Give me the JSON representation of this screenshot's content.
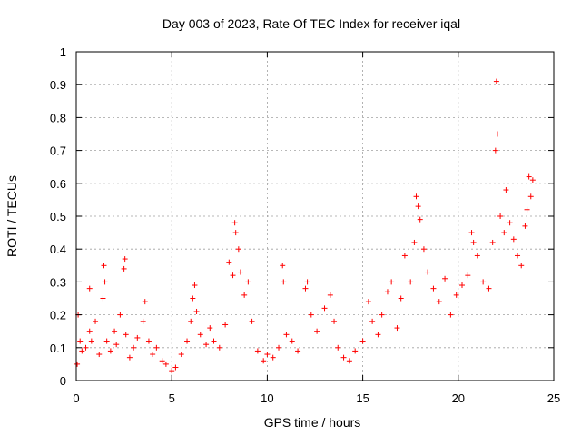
{
  "chart_data": {
    "type": "scatter",
    "title": "Day 003 of 2023, Rate Of TEC Index for receiver iqal",
    "xlabel": "GPS time / hours",
    "ylabel": "ROTI / TECUs",
    "xlim": [
      0,
      25
    ],
    "ylim": [
      0,
      1
    ],
    "xticks": [
      "0",
      "5",
      "10",
      "15",
      "20",
      "25"
    ],
    "yticks": [
      "0",
      "0.1",
      "0.2",
      "0.3",
      "0.4",
      "0.5",
      "0.6",
      "0.7",
      "0.8",
      "0.9",
      "1"
    ],
    "grid": true,
    "marker": "+",
    "series_color": "#ff0000",
    "series": [
      {
        "x": [
          0.05,
          0.1,
          0.2,
          0.3,
          0.5,
          0.7,
          0.7,
          0.8,
          1.0,
          1.2,
          1.4,
          1.45,
          1.5,
          1.6,
          1.8,
          2.0,
          2.1,
          2.3,
          2.5,
          2.55,
          2.6,
          2.8,
          3.0,
          3.2,
          3.5,
          3.6,
          3.8,
          4.0,
          4.2,
          4.5,
          4.7,
          5.0,
          5.2,
          5.5,
          5.8,
          6.0,
          6.1,
          6.2,
          6.3,
          6.5,
          6.8,
          7.0,
          7.2,
          7.5,
          7.8,
          8.0,
          8.2,
          8.3,
          8.35,
          8.5,
          8.6,
          8.8,
          9.0,
          9.2,
          9.5,
          9.8,
          10.0,
          10.3,
          10.6,
          10.8,
          10.85,
          11.0,
          11.3,
          11.6,
          12.0,
          12.1,
          12.3,
          12.6,
          13.0,
          13.3,
          13.5,
          13.7,
          14.0,
          14.3,
          14.6,
          15.0,
          15.3,
          15.5,
          15.8,
          16.0,
          16.3,
          16.5,
          16.8,
          17.0,
          17.2,
          17.5,
          17.7,
          17.8,
          17.9,
          18.0,
          18.2,
          18.4,
          18.7,
          19.0,
          19.3,
          19.6,
          19.9,
          20.2,
          20.5,
          20.7,
          20.8,
          21.0,
          21.3,
          21.6,
          21.8,
          21.95,
          22.0,
          22.05,
          22.2,
          22.4,
          22.5,
          22.7,
          22.9,
          23.1,
          23.3,
          23.5,
          23.6,
          23.7,
          23.8,
          23.9
        ],
        "y": [
          0.05,
          0.2,
          0.12,
          0.09,
          0.1,
          0.28,
          0.15,
          0.12,
          0.18,
          0.08,
          0.25,
          0.35,
          0.3,
          0.12,
          0.09,
          0.15,
          0.11,
          0.2,
          0.34,
          0.37,
          0.14,
          0.07,
          0.1,
          0.13,
          0.18,
          0.24,
          0.12,
          0.08,
          0.1,
          0.06,
          0.05,
          0.03,
          0.04,
          0.08,
          0.12,
          0.18,
          0.25,
          0.29,
          0.21,
          0.14,
          0.11,
          0.16,
          0.12,
          0.1,
          0.17,
          0.36,
          0.32,
          0.48,
          0.45,
          0.4,
          0.33,
          0.26,
          0.3,
          0.18,
          0.09,
          0.06,
          0.08,
          0.07,
          0.1,
          0.35,
          0.3,
          0.14,
          0.12,
          0.09,
          0.28,
          0.3,
          0.2,
          0.15,
          0.22,
          0.26,
          0.18,
          0.1,
          0.07,
          0.06,
          0.09,
          0.12,
          0.24,
          0.18,
          0.14,
          0.2,
          0.27,
          0.3,
          0.16,
          0.25,
          0.38,
          0.3,
          0.42,
          0.56,
          0.53,
          0.49,
          0.4,
          0.33,
          0.28,
          0.24,
          0.31,
          0.2,
          0.26,
          0.29,
          0.32,
          0.45,
          0.42,
          0.38,
          0.3,
          0.28,
          0.42,
          0.7,
          0.91,
          0.75,
          0.5,
          0.45,
          0.58,
          0.48,
          0.43,
          0.38,
          0.35,
          0.47,
          0.52,
          0.62,
          0.56,
          0.61
        ]
      }
    ]
  }
}
